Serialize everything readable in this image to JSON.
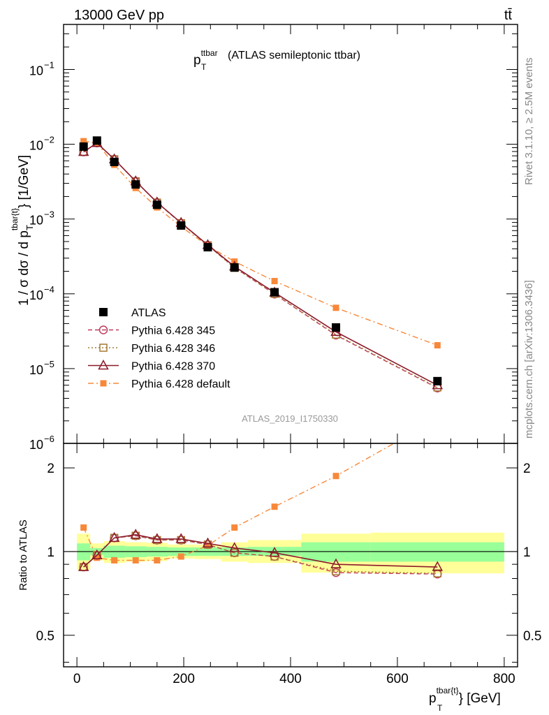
{
  "header": {
    "left": "13000 GeV pp",
    "right": "tt̄"
  },
  "side_labels": {
    "rivet": "Rivet 3.1.10, ≥ 2.5M events",
    "mcplots": "mcplots.cern.ch [arXiv:1306.3436]"
  },
  "chart_data": [
    {
      "type": "line",
      "panel": "main",
      "title_main": "p",
      "title_sub": "T",
      "title_sup": "ttbar",
      "title_rest": "(ATLAS semileptonic ttbar)",
      "ylabel": "1 / σ dσ / d p",
      "ylabel_sub": "T",
      "ylabel_sup": "tbar{t}",
      "ylabel_unit": "} [1/GeV]",
      "yscale": "log",
      "ylim": [
        1e-06,
        0.4
      ],
      "xlim": [
        -25,
        825
      ],
      "ytick_labels": [
        {
          "base": "10",
          "exp": "−1",
          "value": 0.1
        },
        {
          "base": "10",
          "exp": "−2",
          "value": 0.01
        },
        {
          "base": "10",
          "exp": "−3",
          "value": 0.001
        },
        {
          "base": "10",
          "exp": "−4",
          "value": 0.0001
        },
        {
          "base": "10",
          "exp": "−5",
          "value": 1e-05
        },
        {
          "base": "10",
          "exp": "−6",
          "value": 1e-06
        }
      ],
      "watermark": "ATLAS_2019_I1750330",
      "legend_position": "lower-left",
      "x": [
        12.5,
        37.5,
        70,
        110,
        150,
        195,
        245,
        295,
        370,
        485,
        675
      ],
      "series": [
        {
          "name": "ATLAS",
          "style": "data",
          "color": "#000000",
          "values": [
            0.0093,
            0.0112,
            0.0058,
            0.0029,
            0.00155,
            0.00082,
            0.00042,
            0.000225,
            0.000105,
            3.55e-05,
            6.8e-06
          ]
        },
        {
          "name": "Pythia 6.428 345",
          "style": "dashed",
          "marker": "circle",
          "color": "#c0395a",
          "values": [
            0.0079,
            0.0104,
            0.0063,
            0.0032,
            0.00166,
            0.00088,
            0.000445,
            0.000225,
            9.9e-05,
            2.8e-05,
            5.5e-06
          ]
        },
        {
          "name": "Pythia 6.428 346",
          "style": "dotted",
          "marker": "square",
          "color": "#a47a36",
          "values": [
            0.0079,
            0.0104,
            0.0063,
            0.0032,
            0.00166,
            0.00088,
            0.000445,
            0.000222,
            0.0001,
            2.85e-05,
            5.6e-06
          ]
        },
        {
          "name": "Pythia 6.428 370",
          "style": "solid",
          "marker": "triangle",
          "color": "#8b1a2b",
          "values": [
            0.0079,
            0.0104,
            0.0063,
            0.0032,
            0.00167,
            0.00089,
            0.00045,
            0.000232,
            0.000104,
            3.1e-05,
            6e-06
          ]
        },
        {
          "name": "Pythia 6.428 default",
          "style": "dashdot",
          "marker": "filled-square",
          "color": "#f7883a",
          "values": [
            0.011,
            0.0104,
            0.0053,
            0.0026,
            0.00143,
            0.00079,
            0.00044,
            0.00027,
            0.000148,
            6.5e-05,
            2.05e-05
          ]
        }
      ]
    },
    {
      "type": "line",
      "panel": "ratio",
      "ylabel": "Ratio to ATLAS",
      "yscale": "log",
      "ylim": [
        0.385,
        2.45
      ],
      "xlim": [
        -25,
        825
      ],
      "xlabel": "p",
      "xlabel_sub": "T",
      "xlabel_sup": "tbar{t}",
      "xlabel_unit": "} [GeV]",
      "xtick_labels": [
        "0",
        "200",
        "400",
        "600",
        "800"
      ],
      "xticks": [
        0,
        200,
        400,
        600,
        800
      ],
      "ytick_labels": [
        "2",
        "1",
        "0.5"
      ],
      "yticks": [
        2,
        1,
        0.5
      ],
      "bands": {
        "edges": [
          0,
          25,
          50,
          90,
          130,
          170,
          220,
          270,
          320,
          420,
          550,
          800
        ],
        "inner_lo": [
          0.93,
          0.97,
          0.95,
          0.955,
          0.96,
          0.965,
          0.965,
          0.965,
          0.965,
          0.92,
          0.92
        ],
        "inner_hi": [
          1.07,
          1.03,
          1.05,
          1.045,
          1.04,
          1.035,
          1.035,
          1.035,
          1.04,
          1.08,
          1.08
        ],
        "outer_lo": [
          0.86,
          0.93,
          0.91,
          0.92,
          0.925,
          0.945,
          0.94,
          0.92,
          0.91,
          0.84,
          0.835
        ],
        "outer_hi": [
          1.16,
          1.07,
          1.09,
          1.08,
          1.075,
          1.06,
          1.06,
          1.08,
          1.1,
          1.16,
          1.17
        ],
        "inner_color": "#99ff99",
        "outer_color": "#ffff99"
      },
      "series": [
        {
          "name": "Pythia 6.428 345",
          "style": "dashed",
          "marker": "circle",
          "color": "#c0395a",
          "values": [
            0.88,
            0.97,
            1.12,
            1.14,
            1.1,
            1.1,
            1.06,
            0.99,
            0.96,
            0.84,
            0.83
          ]
        },
        {
          "name": "Pythia 6.428 346",
          "style": "dotted",
          "marker": "square",
          "color": "#a47a36",
          "values": [
            0.88,
            0.97,
            1.12,
            1.14,
            1.1,
            1.1,
            1.06,
            0.99,
            0.96,
            0.85,
            0.835
          ]
        },
        {
          "name": "Pythia 6.428 370",
          "style": "solid",
          "marker": "triangle",
          "color": "#8b1a2b",
          "values": [
            0.88,
            0.97,
            1.12,
            1.15,
            1.11,
            1.11,
            1.07,
            1.03,
            0.99,
            0.9,
            0.88
          ]
        },
        {
          "name": "Pythia 6.428 default",
          "style": "dashdot",
          "marker": "filled-square",
          "color": "#f7883a",
          "values": [
            1.22,
            0.95,
            0.93,
            0.93,
            0.93,
            0.96,
            1.05,
            1.22,
            1.45,
            1.87,
            3.0
          ]
        }
      ]
    }
  ]
}
